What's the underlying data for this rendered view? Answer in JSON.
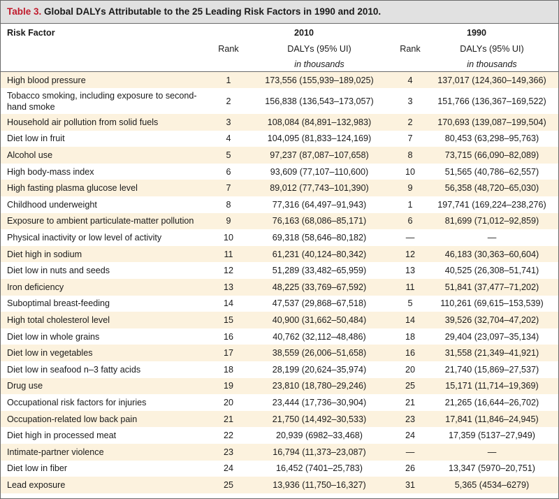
{
  "table": {
    "label": "Table 3.",
    "title": "Global DALYs Attributable to the 25 Leading Risk Factors in 1990 and 2010.",
    "headers": {
      "risk_factor": "Risk Factor",
      "year_2010": "2010",
      "year_1990": "1990",
      "rank": "Rank",
      "dalys": "DALYs (95% UI)",
      "units": "in thousands"
    },
    "rows": [
      {
        "risk": "High blood pressure",
        "rank2010": "1",
        "dalys2010": "173,556 (155,939–189,025)",
        "rank1990": "4",
        "dalys1990": "137,017 (124,360–149,366)"
      },
      {
        "risk": "Tobacco smoking, including exposure to second-hand smoke",
        "rank2010": "2",
        "dalys2010": "156,838 (136,543–173,057)",
        "rank1990": "3",
        "dalys1990": "151,766 (136,367–169,522)"
      },
      {
        "risk": "Household air pollution from solid fuels",
        "rank2010": "3",
        "dalys2010": "108,084 (84,891–132,983)",
        "rank1990": "2",
        "dalys1990": "170,693 (139,087–199,504)"
      },
      {
        "risk": "Diet low in fruit",
        "rank2010": "4",
        "dalys2010": "104,095 (81,833–124,169)",
        "rank1990": "7",
        "dalys1990": "80,453 (63,298–95,763)"
      },
      {
        "risk": "Alcohol use",
        "rank2010": "5",
        "dalys2010": "97,237 (87,087–107,658)",
        "rank1990": "8",
        "dalys1990": "73,715 (66,090–82,089)"
      },
      {
        "risk": "High body-mass index",
        "rank2010": "6",
        "dalys2010": "93,609 (77,107–110,600)",
        "rank1990": "10",
        "dalys1990": "51,565 (40,786–62,557)"
      },
      {
        "risk": "High fasting plasma glucose level",
        "rank2010": "7",
        "dalys2010": "89,012 (77,743–101,390)",
        "rank1990": "9",
        "dalys1990": "56,358 (48,720–65,030)"
      },
      {
        "risk": "Childhood underweight",
        "rank2010": "8",
        "dalys2010": "77,316 (64,497–91,943)",
        "rank1990": "1",
        "dalys1990": "197,741 (169,224–238,276)"
      },
      {
        "risk": "Exposure to ambient particulate-matter pollution",
        "rank2010": "9",
        "dalys2010": "76,163 (68,086–85,171)",
        "rank1990": "6",
        "dalys1990": "81,699 (71,012–92,859)"
      },
      {
        "risk": "Physical inactivity or low level of activity",
        "rank2010": "10",
        "dalys2010": "69,318 (58,646–80,182)",
        "rank1990": "—",
        "dalys1990": "—"
      },
      {
        "risk": "Diet high in sodium",
        "rank2010": "11",
        "dalys2010": "61,231 (40,124–80,342)",
        "rank1990": "12",
        "dalys1990": "46,183 (30,363–60,604)"
      },
      {
        "risk": "Diet low in nuts and seeds",
        "rank2010": "12",
        "dalys2010": "51,289 (33,482–65,959)",
        "rank1990": "13",
        "dalys1990": "40,525 (26,308–51,741)"
      },
      {
        "risk": "Iron deficiency",
        "rank2010": "13",
        "dalys2010": "48,225 (33,769–67,592)",
        "rank1990": "11",
        "dalys1990": "51,841 (37,477–71,202)"
      },
      {
        "risk": "Suboptimal breast-feeding",
        "rank2010": "14",
        "dalys2010": "47,537 (29,868–67,518)",
        "rank1990": "5",
        "dalys1990": "110,261 (69,615–153,539)"
      },
      {
        "risk": "High total cholesterol level",
        "rank2010": "15",
        "dalys2010": "40,900 (31,662–50,484)",
        "rank1990": "14",
        "dalys1990": "39,526 (32,704–47,202)"
      },
      {
        "risk": "Diet low in whole grains",
        "rank2010": "16",
        "dalys2010": "40,762 (32,112–48,486)",
        "rank1990": "18",
        "dalys1990": "29,404 (23,097–35,134)"
      },
      {
        "risk": "Diet low in vegetables",
        "rank2010": "17",
        "dalys2010": "38,559 (26,006–51,658)",
        "rank1990": "16",
        "dalys1990": "31,558 (21,349–41,921)"
      },
      {
        "risk": "Diet low in seafood n–3 fatty acids",
        "rank2010": "18",
        "dalys2010": "28,199 (20,624–35,974)",
        "rank1990": "20",
        "dalys1990": "21,740 (15,869–27,537)"
      },
      {
        "risk": "Drug use",
        "rank2010": "19",
        "dalys2010": "23,810 (18,780–29,246)",
        "rank1990": "25",
        "dalys1990": "15,171 (11,714–19,369)"
      },
      {
        "risk": "Occupational risk factors for injuries",
        "rank2010": "20",
        "dalys2010": "23,444 (17,736–30,904)",
        "rank1990": "21",
        "dalys1990": "21,265 (16,644–26,702)"
      },
      {
        "risk": "Occupation-related low back pain",
        "rank2010": "21",
        "dalys2010": "21,750 (14,492–30,533)",
        "rank1990": "23",
        "dalys1990": "17,841 (11,846–24,945)"
      },
      {
        "risk": "Diet high in processed meat",
        "rank2010": "22",
        "dalys2010": "20,939 (6982–33,468)",
        "rank1990": "24",
        "dalys1990": "17,359 (5137–27,949)"
      },
      {
        "risk": "Intimate-partner violence",
        "rank2010": "23",
        "dalys2010": "16,794 (11,373–23,087)",
        "rank1990": "—",
        "dalys1990": "—"
      },
      {
        "risk": "Diet low in fiber",
        "rank2010": "24",
        "dalys2010": "16,452 (7401–25,783)",
        "rank1990": "26",
        "dalys1990": "13,347 (5970–20,751)"
      },
      {
        "risk": "Lead exposure",
        "rank2010": "25",
        "dalys2010": "13,936 (11,750–16,327)",
        "rank1990": "31",
        "dalys1990": "5,365 (4534–6279)"
      }
    ]
  }
}
